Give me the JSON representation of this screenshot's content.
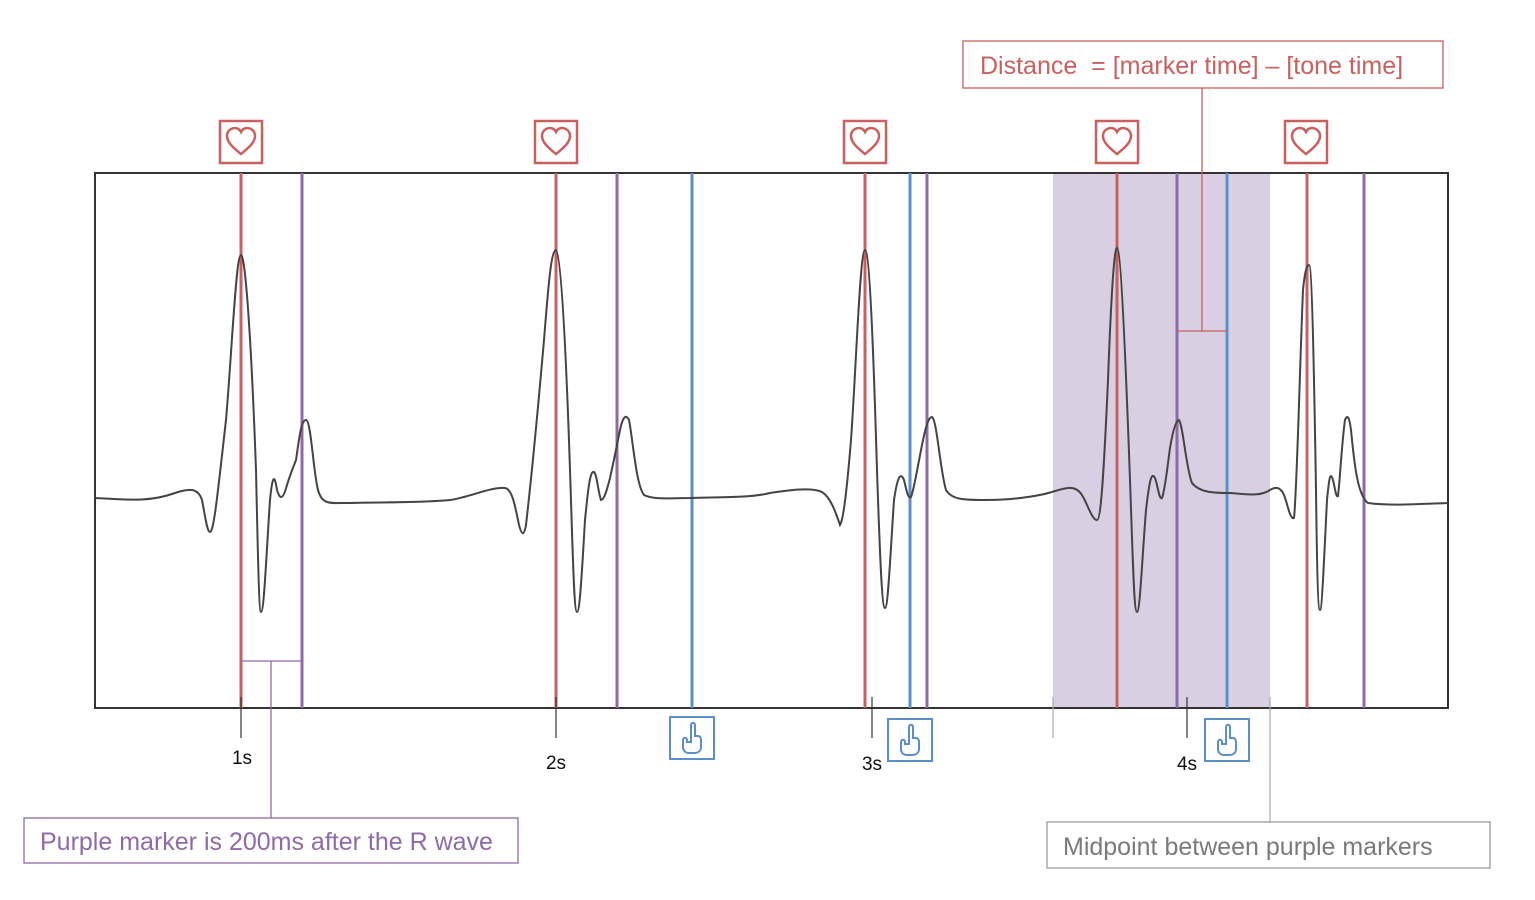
{
  "annotations": {
    "distance": {
      "text": "Distance  = [marker time] – [tone time]",
      "color": "#c9605e"
    },
    "purple_marker": {
      "text": "Purple marker is 200ms after the R wave",
      "color": "#8e6aa8"
    },
    "midpoint": {
      "text": "Midpoint between purple markers",
      "color": "#7a7a7a"
    }
  },
  "time_ticks": [
    {
      "label": "1s"
    },
    {
      "label": "2s"
    },
    {
      "label": "3s"
    },
    {
      "label": "4s"
    }
  ],
  "colors": {
    "r_wave_marker": "#c9605e",
    "purple_marker": "#8e6aa8",
    "tone_marker": "#5b8fc9",
    "highlight_band": "#d8d0e2",
    "trace": "#444444",
    "frame": "#333333"
  },
  "icons": {
    "heartbeat": "heart-icon",
    "response": "pointing-hand-icon"
  },
  "marker_delay_ms": 200
}
